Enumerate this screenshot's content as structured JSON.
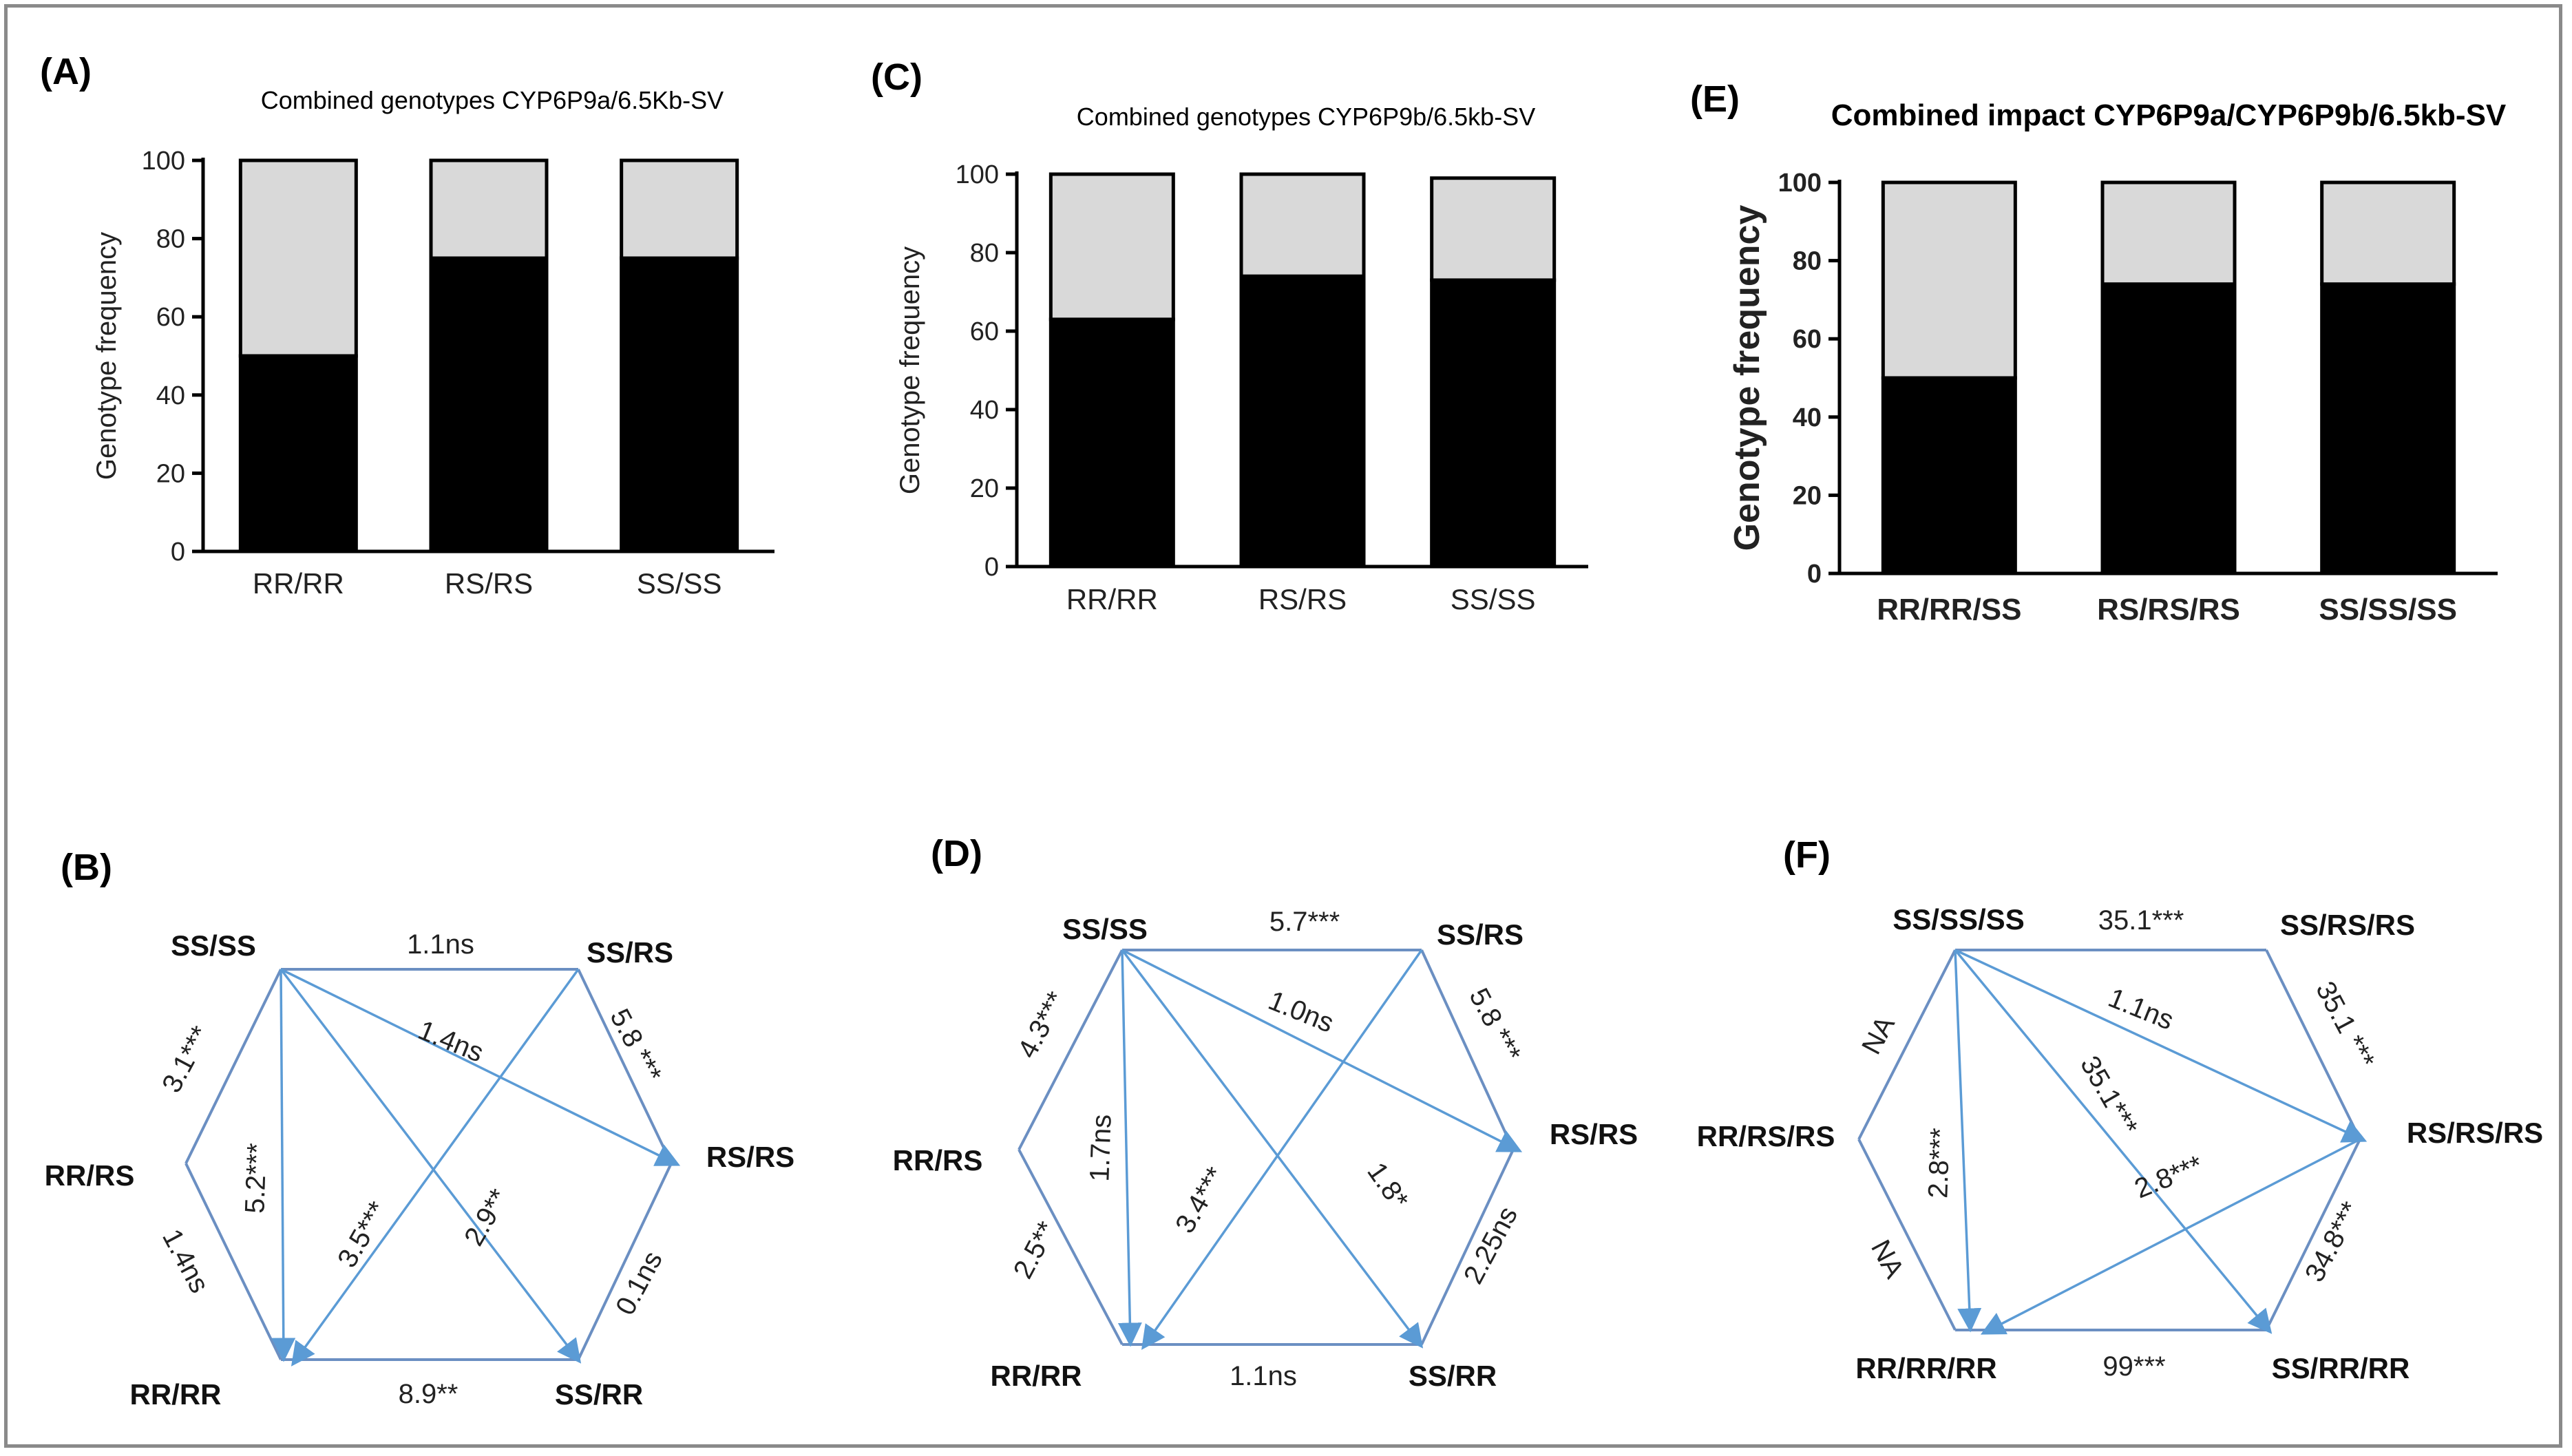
{
  "figure": {
    "colors": {
      "black_segment": "#000000",
      "grey_segment": "#d9d9d9",
      "axis": "#000000",
      "network_line": "#6b8fc2",
      "arrow": "#5b9bd5",
      "border": "#8a8a8a"
    }
  },
  "panels": {
    "A": {
      "label": "(A)"
    },
    "B": {
      "label": "(B)"
    },
    "C": {
      "label": "(C)"
    },
    "D": {
      "label": "(D)"
    },
    "E": {
      "label": "(E)"
    },
    "F": {
      "label": "(F)"
    }
  },
  "chart_data": [
    {
      "panel": "A",
      "type": "bar",
      "stacked": true,
      "title": "Combined genotypes CYP6P9a/6.5Kb-SV",
      "xlabel": "",
      "ylabel": "Genotype frequency",
      "ylim": [
        0,
        100
      ],
      "yticks": [
        "0",
        "20",
        "40",
        "60",
        "80",
        "100"
      ],
      "categories": [
        "RR/RR",
        "RS/RS",
        "SS/SS"
      ],
      "series": [
        {
          "name": "black",
          "values": [
            50,
            75,
            75
          ]
        },
        {
          "name": "grey",
          "values": [
            50,
            25,
            25
          ]
        }
      ]
    },
    {
      "panel": "C",
      "type": "bar",
      "stacked": true,
      "title": "Combined genotypes CYP6P9b/6.5kb-SV",
      "xlabel": "",
      "ylabel": "Genotype frequency",
      "ylim": [
        0,
        100
      ],
      "yticks": [
        "0",
        "20",
        "40",
        "60",
        "80",
        "100"
      ],
      "categories": [
        "RR/RR",
        "RS/RS",
        "SS/SS"
      ],
      "series": [
        {
          "name": "black",
          "values": [
            63,
            74,
            73
          ]
        },
        {
          "name": "grey",
          "values": [
            37,
            26,
            26
          ]
        }
      ]
    },
    {
      "panel": "E",
      "type": "bar",
      "stacked": true,
      "title": "Combined impact CYP6P9a/CYP6P9b/6.5kb-SV",
      "xlabel": "",
      "ylabel": "Genotype frequency",
      "ylim": [
        0,
        100
      ],
      "yticks": [
        "0",
        "20",
        "40",
        "60",
        "80",
        "100"
      ],
      "categories": [
        "RR/RR/SS",
        "RS/RS/RS",
        "SS/SS/SS"
      ],
      "series": [
        {
          "name": "black",
          "values": [
            50,
            74,
            74
          ]
        },
        {
          "name": "grey",
          "values": [
            50,
            26,
            26
          ]
        }
      ]
    },
    {
      "panel": "B",
      "type": "network",
      "nodes": [
        "SS/SS",
        "SS/RS",
        "RS/RS",
        "SS/RR",
        "RR/RR",
        "RR/RS"
      ],
      "edges": [
        {
          "from": "SS/SS",
          "to": "SS/RS",
          "label": "1.1ns",
          "kind": "side"
        },
        {
          "from": "SS/RS",
          "to": "RS/RS",
          "label": "5.8 ***",
          "kind": "side"
        },
        {
          "from": "RS/RS",
          "to": "SS/RR",
          "label": "0.1ns",
          "kind": "side"
        },
        {
          "from": "SS/RR",
          "to": "RR/RR",
          "label": "8.9**",
          "kind": "side"
        },
        {
          "from": "RR/RR",
          "to": "RR/RS",
          "label": "1.4ns",
          "kind": "side"
        },
        {
          "from": "RR/RS",
          "to": "SS/SS",
          "label": "3.1***",
          "kind": "side"
        },
        {
          "from": "SS/SS",
          "to": "RS/RS",
          "label": "1.4ns",
          "kind": "arrow"
        },
        {
          "from": "SS/SS",
          "to": "RR/RR",
          "label": "5.2***",
          "kind": "arrow"
        },
        {
          "from": "SS/SS",
          "to": "SS/RR",
          "label": "2.9**",
          "kind": "arrow"
        },
        {
          "from": "SS/RS",
          "to": "RR/RR",
          "label": "3.5***",
          "kind": "arrow"
        }
      ]
    },
    {
      "panel": "D",
      "type": "network",
      "nodes": [
        "SS/SS",
        "SS/RS",
        "RS/RS",
        "SS/RR",
        "RR/RR",
        "RR/RS"
      ],
      "edges": [
        {
          "from": "SS/SS",
          "to": "SS/RS",
          "label": "5.7***",
          "kind": "side"
        },
        {
          "from": "SS/RS",
          "to": "RS/RS",
          "label": "5.8 ***",
          "kind": "side"
        },
        {
          "from": "RS/RS",
          "to": "SS/RR",
          "label": "2.25ns",
          "kind": "side"
        },
        {
          "from": "SS/RR",
          "to": "RR/RR",
          "label": "1.1ns",
          "kind": "side"
        },
        {
          "from": "RR/RR",
          "to": "RR/RS",
          "label": "2.5**",
          "kind": "side"
        },
        {
          "from": "RR/RS",
          "to": "SS/SS",
          "label": "4.3***",
          "kind": "side"
        },
        {
          "from": "SS/SS",
          "to": "RS/RS",
          "label": "1.0ns",
          "kind": "arrow"
        },
        {
          "from": "SS/SS",
          "to": "RR/RR",
          "label": "1.7ns",
          "kind": "arrow"
        },
        {
          "from": "SS/SS",
          "to": "SS/RR",
          "label": "1.8*",
          "kind": "arrow"
        },
        {
          "from": "SS/RS",
          "to": "RR/RR",
          "label": "3.4***",
          "kind": "arrow"
        }
      ]
    },
    {
      "panel": "F",
      "type": "network",
      "nodes": [
        "SS/SS/SS",
        "SS/RS/RS",
        "RS/RS/RS",
        "SS/RR/RR",
        "RR/RR/RR",
        "RR/RS/RS"
      ],
      "edges": [
        {
          "from": "SS/SS/SS",
          "to": "SS/RS/RS",
          "label": "35.1***",
          "kind": "side"
        },
        {
          "from": "SS/RS/RS",
          "to": "RS/RS/RS",
          "label": "35.1 ***",
          "kind": "side"
        },
        {
          "from": "RS/RS/RS",
          "to": "SS/RR/RR",
          "label": "34.8***",
          "kind": "side"
        },
        {
          "from": "SS/RR/RR",
          "to": "RR/RR/RR",
          "label": "99***",
          "kind": "side"
        },
        {
          "from": "RR/RR/RR",
          "to": "RR/RS/RS",
          "label": "NA",
          "kind": "side"
        },
        {
          "from": "RR/RS/RS",
          "to": "SS/SS/SS",
          "label": "NA",
          "kind": "side"
        },
        {
          "from": "SS/SS/SS",
          "to": "RS/RS/RS",
          "label": "1.1ns",
          "kind": "arrow"
        },
        {
          "from": "SS/SS/SS",
          "to": "RR/RR/RR",
          "label": "2.8***",
          "kind": "arrow"
        },
        {
          "from": "SS/SS/SS",
          "to": "SS/RR/RR",
          "label": "35.1***",
          "kind": "arrow"
        },
        {
          "from": "RS/RS/RS",
          "to": "RR/RR/RR",
          "label": "2.8***",
          "kind": "arrow"
        }
      ]
    }
  ]
}
